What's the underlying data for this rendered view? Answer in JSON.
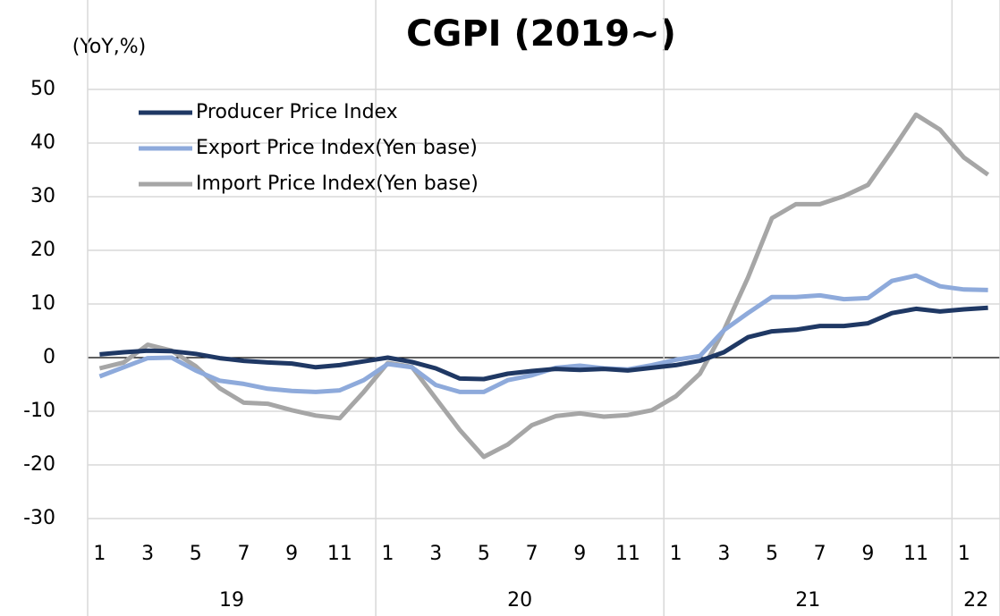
{
  "chart_data": {
    "type": "line",
    "title": "CGPI (2019~)",
    "y_label": "(YoY,%)",
    "categories": [
      "1",
      null,
      "3",
      null,
      "5",
      null,
      "7",
      null,
      "9",
      null,
      "11",
      null,
      "1",
      null,
      "3",
      null,
      "5",
      null,
      "7",
      null,
      "9",
      null,
      "11",
      null,
      "1",
      null,
      "3",
      null,
      "5",
      null,
      "7",
      null,
      "9",
      null,
      "11",
      null,
      "1",
      null
    ],
    "year_groups": [
      {
        "label": "19",
        "months": 12
      },
      {
        "label": "20",
        "months": 12
      },
      {
        "label": "21",
        "months": 12
      },
      {
        "label": "22",
        "months": 2
      }
    ],
    "series": [
      {
        "name": "Producer Price Index",
        "color": "#1f3864",
        "values": [
          0.6,
          1.0,
          1.3,
          1.2,
          0.7,
          -0.1,
          -0.6,
          -0.9,
          -1.1,
          -1.8,
          -1.4,
          -0.7,
          0.0,
          -0.8,
          -2.0,
          -3.9,
          -4.0,
          -3.0,
          -2.5,
          -2.1,
          -2.3,
          -2.1,
          -2.4,
          -1.9,
          -1.4,
          -0.6,
          1.0,
          3.8,
          4.9,
          5.2,
          5.9,
          5.9,
          6.4,
          8.3,
          9.1,
          8.6,
          9.0,
          9.3
        ]
      },
      {
        "name": "Export Price Index(Yen base)",
        "color": "#8eaadb",
        "values": [
          -3.5,
          -1.8,
          -0.1,
          0.0,
          -2.4,
          -4.3,
          -4.9,
          -5.8,
          -6.2,
          -6.4,
          -6.1,
          -4.2,
          -1.2,
          -1.8,
          -5.1,
          -6.4,
          -6.4,
          -4.2,
          -3.3,
          -1.9,
          -1.5,
          -2.0,
          -2.2,
          -1.4,
          -0.4,
          0.3,
          5.1,
          8.3,
          11.3,
          11.3,
          11.6,
          10.9,
          11.1,
          14.3,
          15.3,
          13.3,
          12.7,
          12.6
        ]
      },
      {
        "name": "Import Price Index(Yen base)",
        "color": "#a6a6a6",
        "values": [
          -2.0,
          -0.9,
          2.4,
          1.3,
          -1.6,
          -5.7,
          -8.4,
          -8.6,
          -9.8,
          -10.8,
          -11.3,
          -6.4,
          -1.0,
          -1.7,
          -7.6,
          -13.5,
          -18.5,
          -16.2,
          -12.6,
          -10.9,
          -10.4,
          -11.0,
          -10.7,
          -9.8,
          -7.2,
          -3.0,
          5.1,
          14.9,
          26.0,
          28.6,
          28.6,
          30.1,
          32.2,
          38.6,
          45.3,
          42.5,
          37.3,
          34.1
        ]
      }
    ],
    "ylim": [
      -30,
      50
    ],
    "yticks": [
      -30,
      -20,
      -10,
      0,
      10,
      20,
      30,
      40,
      50
    ],
    "grid": true
  }
}
